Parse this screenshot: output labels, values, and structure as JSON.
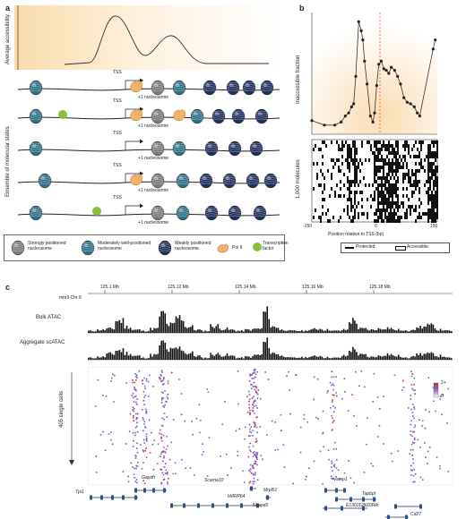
{
  "panel_a": {
    "label": "a",
    "ylabel_top": "Average accessibility",
    "ylabel_states": "Ensemble of molecular states",
    "tss_label": "TSS",
    "plus1_label": "+1 nucleosome",
    "legend": {
      "strong": "Strongly positioned nucleosome",
      "moderate": "Moderately well-positioned nucleosome",
      "weak": "Weakly positioned nucleosome",
      "pol2": "Pol II",
      "tf": "Transcription factor"
    },
    "colors": {
      "strong": "#7a7a7a",
      "moderate": "#2f6f86",
      "weak": "#1f2f5a",
      "pol2": "#f2b26b",
      "tf": "#8bbf3c"
    }
  },
  "panel_b": {
    "label": "b",
    "ylabel": "Inaccessible fraction",
    "molecules_label": "1,000 molecules",
    "xlabel": "Position relative to TSS (bp)",
    "xticks": [
      "-150",
      "0",
      "150"
    ],
    "legend": {
      "protected": "Protected",
      "accessible": "Accessible"
    }
  },
  "panel_c": {
    "label": "c",
    "chrom": "mm9 Chr 6",
    "coords": [
      "125.1 Mb",
      "125.12 Mb",
      "125.14 Mb",
      "125.16 Mb",
      "125.18 Mb"
    ],
    "bulk_label": "Bulk ATAC",
    "agg_label": "Aggregate scATAC",
    "cells_label": "405 single cells",
    "colorbar": {
      "top": "2+",
      "bottom": "0"
    },
    "genes": [
      "Gapdh",
      "Tpi1",
      "Scarna10",
      "Mrpl51",
      "Ncapd2",
      "bMRP64",
      "Vamp1",
      "Tapbpl",
      "E130112N10Rik",
      "Cd27"
    ]
  },
  "chart_data": [
    {
      "type": "line",
      "title": "",
      "xlabel": "Position relative to TSS (bp)",
      "ylabel": "Inaccessible fraction",
      "xlim": [
        -150,
        150
      ],
      "x": [
        -150,
        -120,
        -95,
        -80,
        -70,
        -62,
        -55,
        -50,
        -45,
        -38,
        -32,
        -28,
        -24,
        -18,
        -10,
        -4,
        0,
        5,
        10,
        16,
        22,
        28,
        34,
        40,
        48,
        55,
        62,
        70,
        78,
        86,
        95,
        102,
        108,
        140,
        145
      ],
      "y": [
        0.09,
        0.06,
        0.06,
        0.08,
        0.12,
        0.14,
        0.18,
        0.2,
        0.38,
        0.74,
        0.68,
        0.62,
        0.48,
        0.33,
        0.12,
        0.08,
        0.14,
        0.32,
        0.46,
        0.48,
        0.43,
        0.42,
        0.4,
        0.44,
        0.42,
        0.38,
        0.33,
        0.24,
        0.21,
        0.2,
        0.18,
        0.14,
        0.12,
        0.56,
        0.62
      ]
    },
    {
      "type": "line",
      "title": "",
      "series": [
        {
          "name": "Bulk ATAC",
          "values": [
            0.1,
            0.15,
            0.2,
            0.6,
            0.3,
            0.15,
            0.1,
            0.2,
            0.9,
            0.4,
            0.75,
            0.3,
            0.15,
            0.1,
            0.35,
            0.2,
            0.15,
            0.1,
            0.15,
            0.2,
            1.0,
            0.3,
            0.15,
            0.1,
            0.1,
            0.15,
            0.2,
            0.15,
            0.1,
            0.15,
            0.6,
            0.2,
            0.15,
            0.2,
            0.25,
            0.15,
            0.1,
            0.2,
            0.3,
            0.35,
            0.15,
            0.1
          ]
        },
        {
          "name": "Aggregate scATAC",
          "values": [
            0.1,
            0.15,
            0.3,
            0.5,
            0.35,
            0.2,
            0.1,
            0.25,
            0.85,
            0.5,
            0.6,
            0.35,
            0.2,
            0.1,
            0.3,
            0.25,
            0.2,
            0.1,
            0.15,
            0.25,
            0.9,
            0.35,
            0.2,
            0.1,
            0.12,
            0.15,
            0.2,
            0.12,
            0.1,
            0.2,
            0.55,
            0.25,
            0.15,
            0.2,
            0.3,
            0.2,
            0.1,
            0.25,
            0.3,
            0.3,
            0.2,
            0.1
          ]
        }
      ]
    }
  ]
}
